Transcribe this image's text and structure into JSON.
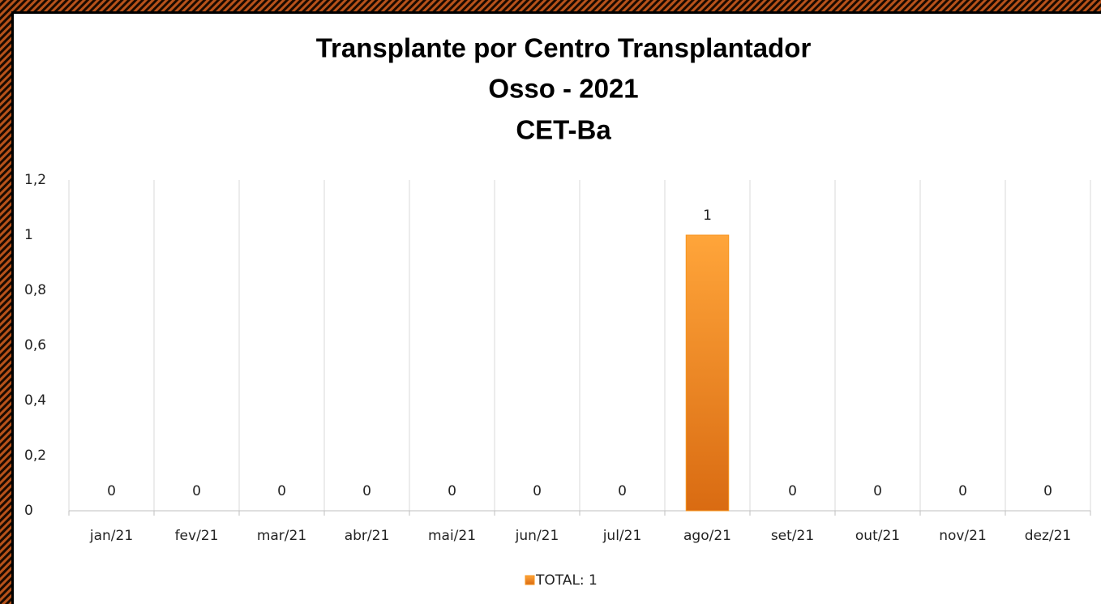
{
  "chart_data": {
    "type": "bar",
    "title": [
      "Transplante por Centro Transplantador",
      "Osso - 2021",
      "CET-Ba"
    ],
    "categories": [
      "jan/21",
      "fev/21",
      "mar/21",
      "abr/21",
      "mai/21",
      "jun/21",
      "jul/21",
      "ago/21",
      "set/21",
      "out/21",
      "nov/21",
      "dez/21"
    ],
    "series": [
      {
        "name": "TOTAL: 1",
        "color": "#f7941d",
        "values": [
          0,
          0,
          0,
          0,
          0,
          0,
          0,
          1,
          0,
          0,
          0,
          0
        ]
      }
    ],
    "ylim": [
      0,
      1.2
    ],
    "yticks": [
      0,
      {
        "value": 0.2,
        "label": "0,2"
      },
      {
        "value": 0.4,
        "label": "0,4"
      },
      {
        "value": 0.6,
        "label": "0,6"
      },
      {
        "value": 0.8,
        "label": "0,8"
      },
      1,
      {
        "value": 1.2,
        "label": "1,2"
      }
    ],
    "grid": false,
    "legend": "bottom"
  }
}
